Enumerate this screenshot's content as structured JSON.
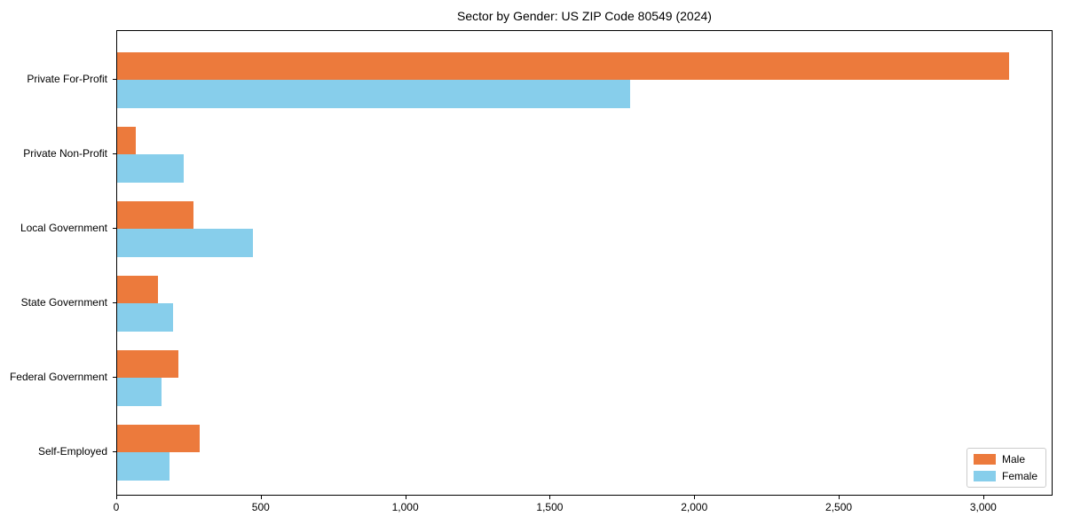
{
  "chart_data": {
    "type": "bar",
    "orientation": "horizontal",
    "title": "Sector by Gender: US ZIP Code 80549 (2024)",
    "categories": [
      "Private For-Profit",
      "Private Non-Profit",
      "Local Government",
      "State Government",
      "Federal Government",
      "Self-Employed"
    ],
    "series": [
      {
        "name": "Male",
        "color": "#ec7a3c",
        "values": [
          3085,
          65,
          263,
          142,
          212,
          286
        ]
      },
      {
        "name": "Female",
        "color": "#87ceeb",
        "values": [
          1775,
          230,
          470,
          195,
          154,
          181
        ]
      }
    ],
    "xlabel": "",
    "ylabel": "",
    "xlim": [
      0,
      3240
    ],
    "xticks": [
      0,
      500,
      1000,
      1500,
      2000,
      2500,
      3000
    ],
    "xtick_labels": [
      "0",
      "500",
      "1,000",
      "1,500",
      "2,000",
      "2,500",
      "3,000"
    ],
    "grid": false,
    "legend": {
      "position": "lower right",
      "entries": [
        "Male",
        "Female"
      ]
    }
  }
}
